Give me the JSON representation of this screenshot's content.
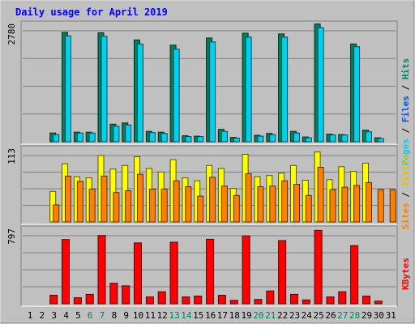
{
  "title": "Daily usage for April 2019",
  "chart_data": {
    "type": "bar",
    "categories": [
      "1",
      "2",
      "3",
      "4",
      "5",
      "6",
      "7",
      "8",
      "9",
      "10",
      "11",
      "12",
      "13",
      "14",
      "15",
      "16",
      "17",
      "18",
      "19",
      "20",
      "21",
      "22",
      "23",
      "24",
      "25",
      "26",
      "27",
      "28",
      "29",
      "30",
      "31"
    ],
    "weekend_categories": [
      "6",
      "7",
      "13",
      "14",
      "20",
      "21",
      "27",
      "28"
    ],
    "panels": [
      {
        "id": "hits",
        "ymax": 2780,
        "ytick_label": "2780",
        "legend": [
          "Pages",
          "Files",
          "Hits"
        ],
        "series": [
          {
            "name": "Hits",
            "color": "#00805f",
            "values": [
              null,
              null,
              220,
              2740,
              240,
              240,
              2730,
              440,
              470,
              2550,
              260,
              240,
              2420,
              150,
              140,
              2600,
              310,
              110,
              2720,
              160,
              210,
              2700,
              260,
              120,
              2950,
              190,
              180,
              2450,
              290,
              100,
              null
            ]
          },
          {
            "name": "Files",
            "color": "#00d0f0",
            "values": [
              null,
              null,
              180,
              2650,
              220,
              220,
              2640,
              390,
              420,
              2450,
              230,
              210,
              2320,
              130,
              130,
              2500,
              260,
              90,
              2620,
              140,
              180,
              2620,
              220,
              100,
              2860,
              170,
              170,
              2380,
              250,
              80,
              null
            ]
          }
        ]
      },
      {
        "id": "visits",
        "ymax": 113,
        "ytick_label": "113",
        "legend": [
          "Sites",
          "Visits"
        ],
        "series": [
          {
            "name": "Visits",
            "color": "#ffff00",
            "values": [
              null,
              null,
              52,
              99,
              77,
              75,
              113,
              90,
              96,
              111,
              91,
              85,
              106,
              75,
              70,
              96,
              91,
              57,
              115,
              77,
              79,
              83,
              96,
              71,
              119,
              72,
              94,
              86,
              100,
              null,
              null
            ]
          },
          {
            "name": "Sites",
            "color": "#ff8000",
            "values": [
              null,
              null,
              29,
              78,
              69,
              56,
              78,
              50,
              53,
              81,
              56,
              56,
              70,
              60,
              44,
              76,
              61,
              45,
              82,
              60,
              61,
              70,
              64,
              45,
              93,
              55,
              59,
              62,
              67,
              55,
              55
            ]
          }
        ]
      },
      {
        "id": "kbytes",
        "ymax": 797,
        "ytick_label": "797",
        "legend": [
          "KBytes"
        ],
        "series": [
          {
            "name": "KBytes",
            "color": "#ff0000",
            "values": [
              null,
              null,
              100,
              752,
              70,
              110,
              800,
              240,
              210,
              713,
              80,
              140,
              721,
              80,
              90,
              755,
              100,
              40,
              795,
              50,
              150,
              740,
              110,
              45,
              860,
              80,
              140,
              680,
              90,
              30,
              null
            ]
          }
        ]
      }
    ]
  },
  "colors": {
    "panel_bg": "#c0c0c0",
    "frame_border": "#000000",
    "title": "#0000ff",
    "weekday_label": "#000000",
    "weekend_label": "#00805f"
  }
}
